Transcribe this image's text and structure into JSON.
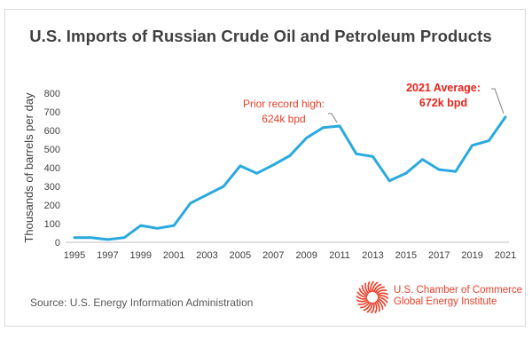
{
  "chart_data": {
    "type": "line",
    "title": "U.S. Imports of Russian Crude Oil and Petroleum Products",
    "ylabel": "Thousands of barrels per day",
    "xlabel": "",
    "ylim": [
      0,
      800
    ],
    "xlim": [
      1995,
      2021
    ],
    "yticks": [
      "0",
      "100",
      "200",
      "300",
      "400",
      "500",
      "600",
      "700",
      "800"
    ],
    "xticks": [
      "1995",
      "1997",
      "1999",
      "2001",
      "2003",
      "2005",
      "2007",
      "2009",
      "2011",
      "2013",
      "2015",
      "2017",
      "2019",
      "2021"
    ],
    "grid": false,
    "line_color": "#29a9df",
    "x": [
      1995,
      1996,
      1997,
      1998,
      1999,
      2000,
      2001,
      2002,
      2003,
      2004,
      2005,
      2006,
      2007,
      2008,
      2009,
      2010,
      2011,
      2012,
      2013,
      2014,
      2015,
      2016,
      2017,
      2018,
      2019,
      2020,
      2021
    ],
    "values": [
      25,
      25,
      15,
      25,
      90,
      75,
      90,
      210,
      255,
      300,
      410,
      370,
      415,
      465,
      560,
      615,
      624,
      475,
      460,
      330,
      370,
      445,
      390,
      380,
      520,
      545,
      672
    ],
    "annotations": [
      {
        "x": 2011,
        "y": 624,
        "lines": [
          "Prior record high:",
          "624k bpd"
        ],
        "color": "#e8402a",
        "bold": false
      },
      {
        "x": 2021,
        "y": 672,
        "lines": [
          "2021 Average:",
          "672k bpd"
        ],
        "color": "#e8231b",
        "bold": true
      }
    ]
  },
  "source": "Source: U.S. Energy Information Administration",
  "logo": {
    "line1": "U.S. Chamber of Commerce",
    "line2": "Global Energy Institute",
    "color": "#e8402a"
  }
}
